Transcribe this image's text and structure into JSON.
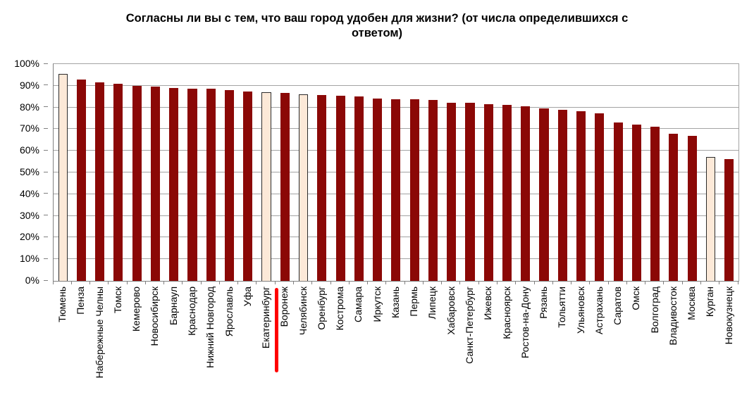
{
  "chart": {
    "title": "Согласны ли вы с тем, что ваш город удобен для жизни? (от числа определившихся с ответом)"
  },
  "chart_data": {
    "type": "bar",
    "title": "Согласны ли вы с тем, что ваш город удобен для жизни? (от числа определившихся с ответом)",
    "xlabel": "",
    "ylabel": "",
    "ylim": [
      0,
      100
    ],
    "ytick_step": 10,
    "ytick_suffix": "%",
    "grid": true,
    "legend_position": "none",
    "categories": [
      "Тюмень",
      "Пенза",
      "Набережные Челны",
      "Томск",
      "Кемерово",
      "Новосибирск",
      "Барнаул",
      "Краснодар",
      "Нижний Новгород",
      "Ярославль",
      "Уфа",
      "Екатеринбург",
      "Воронеж",
      "Челябинск",
      "Оренбург",
      "Кострома",
      "Самара",
      "Иркутск",
      "Казань",
      "Пермь",
      "Липецк",
      "Хабаровск",
      "Санкт-Петербург",
      "Ижевск",
      "Красноярск",
      "Ростов-на-Дону",
      "Рязань",
      "Тольятти",
      "Ульяновск",
      "Астрахань",
      "Саратов",
      "Омск",
      "Волгоград",
      "Владивосток",
      "Москва",
      "Курган",
      "Новокузнецк"
    ],
    "values": [
      95.5,
      93,
      91.5,
      91,
      90,
      89.5,
      89,
      88.7,
      88.5,
      88,
      87.3,
      87,
      86.7,
      86,
      85.7,
      85.5,
      85,
      84,
      83.7,
      83.7,
      83.3,
      82.3,
      82,
      81.6,
      81.2,
      80.6,
      79.7,
      79,
      78.4,
      77.3,
      73,
      72,
      71,
      67.8,
      66.8,
      57.3,
      56.3
    ],
    "highlighted_categories": [
      "Тюмень",
      "Екатеринбург",
      "Челябинск",
      "Курган"
    ],
    "marked_category": "Воронеж",
    "colors": {
      "bar": "#8b0806",
      "highlight_fill": "#fce9d8",
      "highlight_border": "#2b2b2b",
      "gridline": "#a3a3a3",
      "axis": "#808080",
      "marker_line": "#ff0000",
      "text": "#000000"
    }
  }
}
